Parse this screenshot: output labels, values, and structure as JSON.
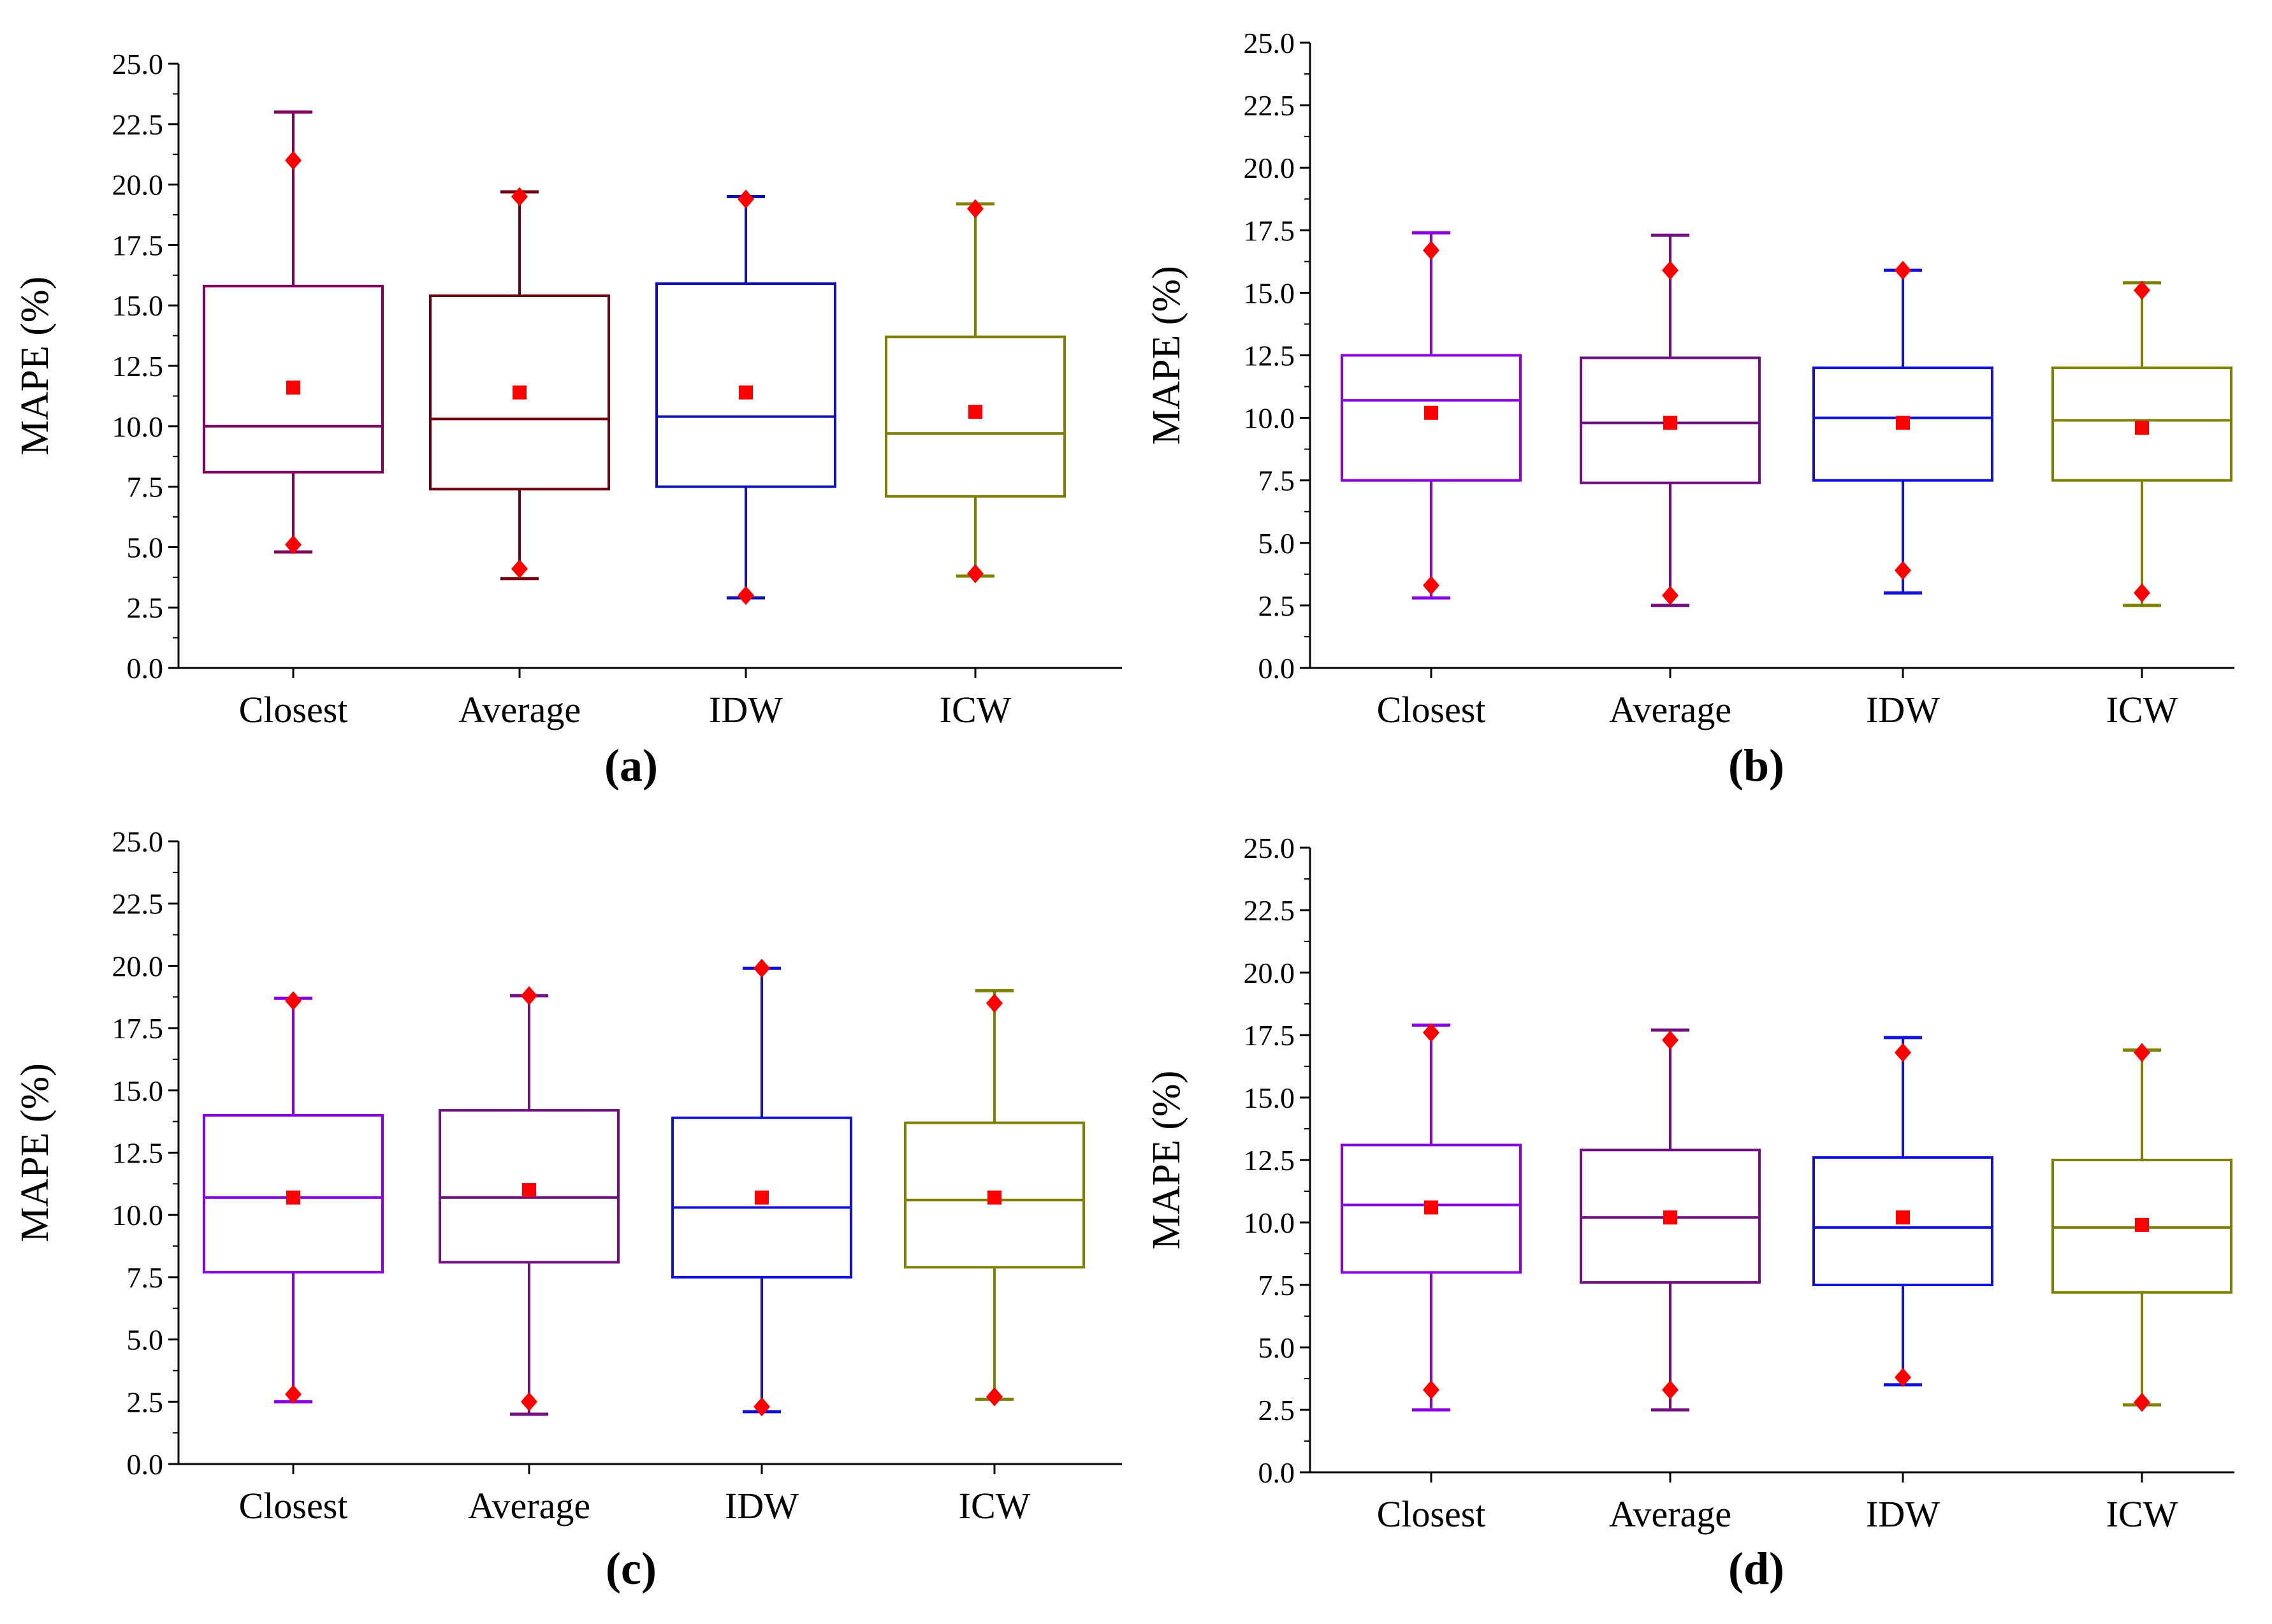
{
  "chart_data": [
    {
      "type": "box",
      "panel_label": "(a)",
      "ylabel": "MAPE (%)",
      "ylim": [
        0,
        25
      ],
      "ytick_step": 2.5,
      "categories": [
        "Closest",
        "Average",
        "IDW",
        "ICW"
      ],
      "colors": [
        "#800060",
        "#700010",
        "#1010b0",
        "#808000"
      ],
      "boxes": [
        {
          "whisker_low": 4.8,
          "q1": 8.1,
          "median": 10.0,
          "q3": 15.8,
          "whisker_high": 23.0,
          "mean": 11.6,
          "min": 5.1,
          "max": 21.0
        },
        {
          "whisker_low": 3.7,
          "q1": 7.4,
          "median": 10.3,
          "q3": 15.4,
          "whisker_high": 19.7,
          "mean": 11.4,
          "min": 4.1,
          "max": 19.5
        },
        {
          "whisker_low": 2.9,
          "q1": 7.5,
          "median": 10.4,
          "q3": 15.9,
          "whisker_high": 19.5,
          "mean": 11.4,
          "min": 3.0,
          "max": 19.4
        },
        {
          "whisker_low": 3.8,
          "q1": 7.1,
          "median": 9.7,
          "q3": 13.7,
          "whisker_high": 19.2,
          "mean": 10.6,
          "min": 3.9,
          "max": 19.0
        }
      ]
    },
    {
      "type": "box",
      "panel_label": "(b)",
      "ylabel": "MAPE (%)",
      "ylim": [
        0,
        25
      ],
      "ytick_step": 2.5,
      "categories": [
        "Closest",
        "Average",
        "IDW",
        "ICW"
      ],
      "colors": [
        "#8800dd",
        "#701080",
        "#1010dd",
        "#808000"
      ],
      "boxes": [
        {
          "whisker_low": 2.8,
          "q1": 7.5,
          "median": 10.7,
          "q3": 12.5,
          "whisker_high": 17.4,
          "mean": 10.2,
          "min": 3.3,
          "max": 16.7
        },
        {
          "whisker_low": 2.5,
          "q1": 7.4,
          "median": 9.8,
          "q3": 12.4,
          "whisker_high": 17.3,
          "mean": 9.8,
          "min": 2.9,
          "max": 15.9
        },
        {
          "whisker_low": 3.0,
          "q1": 7.5,
          "median": 10.0,
          "q3": 12.0,
          "whisker_high": 15.9,
          "mean": 9.8,
          "min": 3.9,
          "max": 15.9
        },
        {
          "whisker_low": 2.5,
          "q1": 7.5,
          "median": 9.9,
          "q3": 12.0,
          "whisker_high": 15.4,
          "mean": 9.6,
          "min": 3.0,
          "max": 15.1
        }
      ]
    },
    {
      "type": "box",
      "panel_label": "(c)",
      "ylabel": "MAPE (%)",
      "ylim": [
        0,
        25
      ],
      "ytick_step": 2.5,
      "categories": [
        "Closest",
        "Average",
        "IDW",
        "ICW"
      ],
      "colors": [
        "#8800dd",
        "#701080",
        "#1010dd",
        "#808000"
      ],
      "boxes": [
        {
          "whisker_low": 2.5,
          "q1": 7.7,
          "median": 10.7,
          "q3": 14.0,
          "whisker_high": 18.7,
          "mean": 10.7,
          "min": 2.8,
          "max": 18.6
        },
        {
          "whisker_low": 2.0,
          "q1": 8.1,
          "median": 10.7,
          "q3": 14.2,
          "whisker_high": 18.8,
          "mean": 11.0,
          "min": 2.5,
          "max": 18.8
        },
        {
          "whisker_low": 2.1,
          "q1": 7.5,
          "median": 10.3,
          "q3": 13.9,
          "whisker_high": 19.9,
          "mean": 10.7,
          "min": 2.3,
          "max": 19.9
        },
        {
          "whisker_low": 2.6,
          "q1": 7.9,
          "median": 10.6,
          "q3": 13.7,
          "whisker_high": 19.0,
          "mean": 10.7,
          "min": 2.7,
          "max": 18.5
        }
      ]
    },
    {
      "type": "box",
      "panel_label": "(d)",
      "ylabel": "MAPE (%)",
      "ylim": [
        0,
        25
      ],
      "ytick_step": 2.5,
      "categories": [
        "Closest",
        "Average",
        "IDW",
        "ICW"
      ],
      "colors": [
        "#8800dd",
        "#701080",
        "#1010dd",
        "#808000"
      ],
      "boxes": [
        {
          "whisker_low": 2.5,
          "q1": 8.0,
          "median": 10.7,
          "q3": 13.1,
          "whisker_high": 17.9,
          "mean": 10.6,
          "min": 3.3,
          "max": 17.6
        },
        {
          "whisker_low": 2.5,
          "q1": 7.6,
          "median": 10.2,
          "q3": 12.9,
          "whisker_high": 17.7,
          "mean": 10.2,
          "min": 3.3,
          "max": 17.3
        },
        {
          "whisker_low": 3.5,
          "q1": 7.5,
          "median": 9.8,
          "q3": 12.6,
          "whisker_high": 17.4,
          "mean": 10.2,
          "min": 3.8,
          "max": 16.8
        },
        {
          "whisker_low": 2.7,
          "q1": 7.2,
          "median": 9.8,
          "q3": 12.5,
          "whisker_high": 16.9,
          "mean": 9.9,
          "min": 2.8,
          "max": 16.8
        }
      ]
    }
  ]
}
